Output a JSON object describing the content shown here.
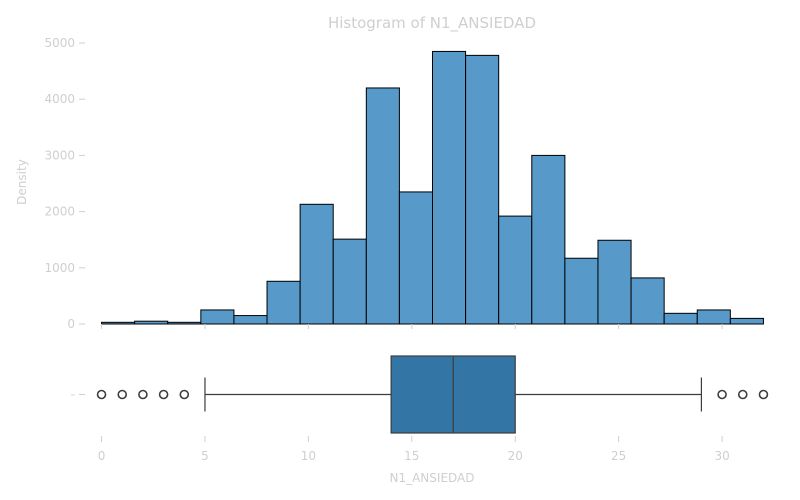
{
  "chart_data": {
    "type": "bar",
    "title": "Histogram of N1_ANSIEDAD",
    "xlabel": "N1_ANSIEDAD",
    "ylabel": "Density",
    "xlim": [
      -0.8,
      32.8
    ],
    "ylim": [
      0,
      5000
    ],
    "xticks": [
      "0",
      "5",
      "10",
      "15",
      "20",
      "25",
      "30"
    ],
    "yticks": [
      "0",
      "1000",
      "2000",
      "3000",
      "4000",
      "5000"
    ],
    "grid": false,
    "bar_color": "#5799c9",
    "histogram": {
      "bin_start": 0,
      "bin_width": 1.6,
      "values": [
        30,
        50,
        30,
        250,
        150,
        760,
        2130,
        1510,
        4200,
        2350,
        4850,
        4780,
        1920,
        3000,
        1170,
        1490,
        820,
        190,
        250,
        100
      ]
    },
    "boxplot": {
      "category": "-",
      "color": "#3375a4",
      "whisker_low": 5,
      "q1": 14,
      "median": 17,
      "q3": 20,
      "whisker_high": 29,
      "outliers": [
        0,
        1,
        2,
        3,
        4,
        30,
        31,
        32
      ]
    }
  }
}
